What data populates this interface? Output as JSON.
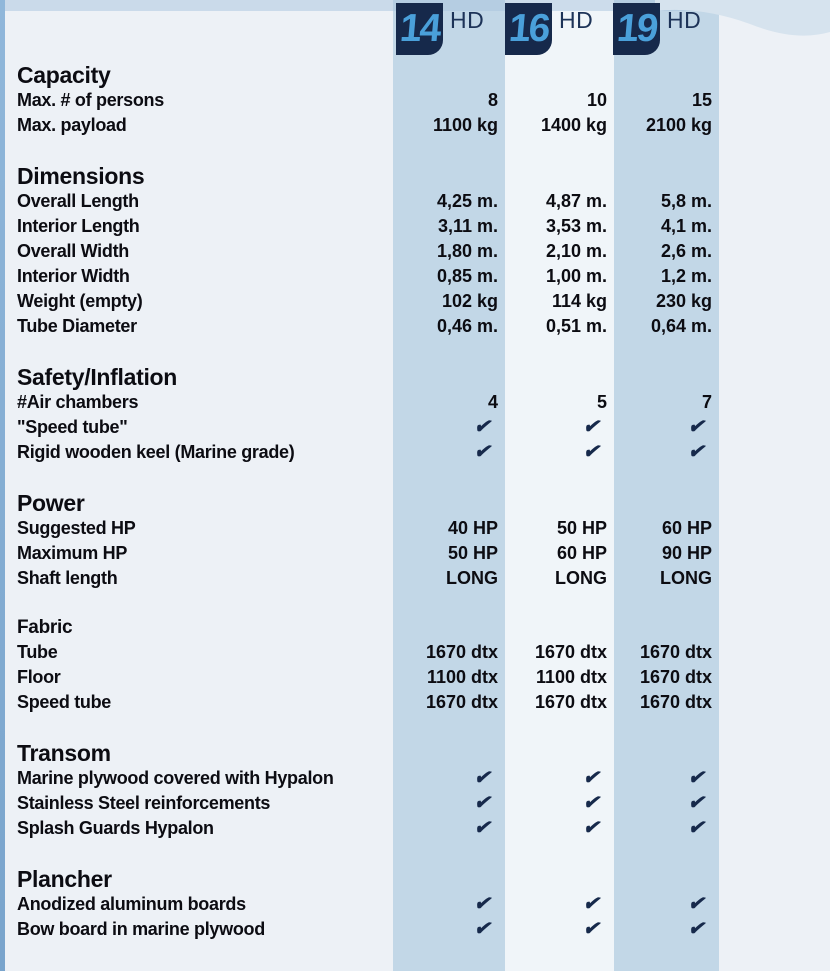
{
  "header": {
    "columns": [
      {
        "model": "14",
        "suffix": "HD"
      },
      {
        "model": "16",
        "suffix": "HD"
      },
      {
        "model": "19",
        "suffix": "HD"
      }
    ]
  },
  "check_glyph": "✔",
  "sections": [
    {
      "title": "Capacity",
      "rows": [
        {
          "label": "Max. # of persons",
          "values": [
            "8",
            "10",
            "15"
          ]
        },
        {
          "label": "Max. payload",
          "values": [
            "1100 kg",
            "1400 kg",
            "2100 kg"
          ]
        }
      ]
    },
    {
      "title": "Dimensions",
      "rows": [
        {
          "label": "Overall Length",
          "values": [
            "4,25 m.",
            "4,87 m.",
            "5,8 m."
          ]
        },
        {
          "label": "Interior Length",
          "values": [
            "3,11 m.",
            "3,53 m.",
            "4,1 m."
          ]
        },
        {
          "label": "Overall Width",
          "values": [
            "1,80 m.",
            "2,10 m.",
            "2,6 m."
          ]
        },
        {
          "label": "Interior Width",
          "values": [
            "0,85 m.",
            "1,00 m.",
            "1,2 m."
          ]
        },
        {
          "label": "Weight (empty)",
          "values": [
            "102 kg",
            "114 kg",
            "230 kg"
          ]
        },
        {
          "label": "Tube Diameter",
          "values": [
            "0,46 m.",
            "0,51 m.",
            "0,64 m."
          ]
        }
      ]
    },
    {
      "title": "Safety/Inflation",
      "rows": [
        {
          "label": "#Air chambers",
          "values": [
            "4",
            "5",
            "7"
          ]
        },
        {
          "label": "\"Speed tube\"",
          "values": [
            "✔",
            "✔",
            "✔"
          ]
        },
        {
          "label": "Rigid wooden keel (Marine grade)",
          "values": [
            "✔",
            "✔",
            "✔"
          ]
        }
      ]
    },
    {
      "title": "Power",
      "rows": [
        {
          "label": "Suggested HP",
          "values": [
            "40 HP",
            "50 HP",
            "60 HP"
          ]
        },
        {
          "label": "Maximum HP",
          "values": [
            "50 HP",
            "60 HP",
            "90 HP"
          ]
        },
        {
          "label": "Shaft length",
          "values": [
            "LONG",
            "LONG",
            "LONG"
          ]
        }
      ]
    },
    {
      "title": "Fabric",
      "small": true,
      "rows": [
        {
          "label": "Tube",
          "values": [
            "1670 dtx",
            "1670 dtx",
            "1670 dtx"
          ]
        },
        {
          "label": "Floor",
          "values": [
            "1100 dtx",
            "1100 dtx",
            "1670 dtx"
          ]
        },
        {
          "label": "Speed tube",
          "values": [
            "1670 dtx",
            "1670 dtx",
            "1670 dtx"
          ]
        }
      ]
    },
    {
      "title": "Transom",
      "rows": [
        {
          "label": "Marine plywood covered with Hypalon",
          "values": [
            "✔",
            "✔",
            "✔"
          ]
        },
        {
          "label": "Stainless Steel reinforcements",
          "values": [
            "✔",
            "✔",
            "✔"
          ]
        },
        {
          "label": "Splash Guards Hypalon",
          "values": [
            "✔",
            "✔",
            "✔"
          ]
        }
      ]
    },
    {
      "title": "Plancher",
      "rows": [
        {
          "label": "Anodized aluminum boards",
          "values": [
            "✔",
            "✔",
            "✔"
          ]
        },
        {
          "label": "Bow board in marine plywood",
          "values": [
            "✔",
            "✔",
            "✔"
          ]
        }
      ]
    }
  ],
  "colors": {
    "page_background": "#edf1f6",
    "band_blue": "#c2d7e7",
    "band_light": "#f0f5f9",
    "left_stripe": "#7fa9d0",
    "box_navy": "#16294b",
    "model_number_blue": "#4aa0da",
    "hd_text": "#1d3358",
    "text": "#0c0c12",
    "checkmark": "#16294b"
  }
}
